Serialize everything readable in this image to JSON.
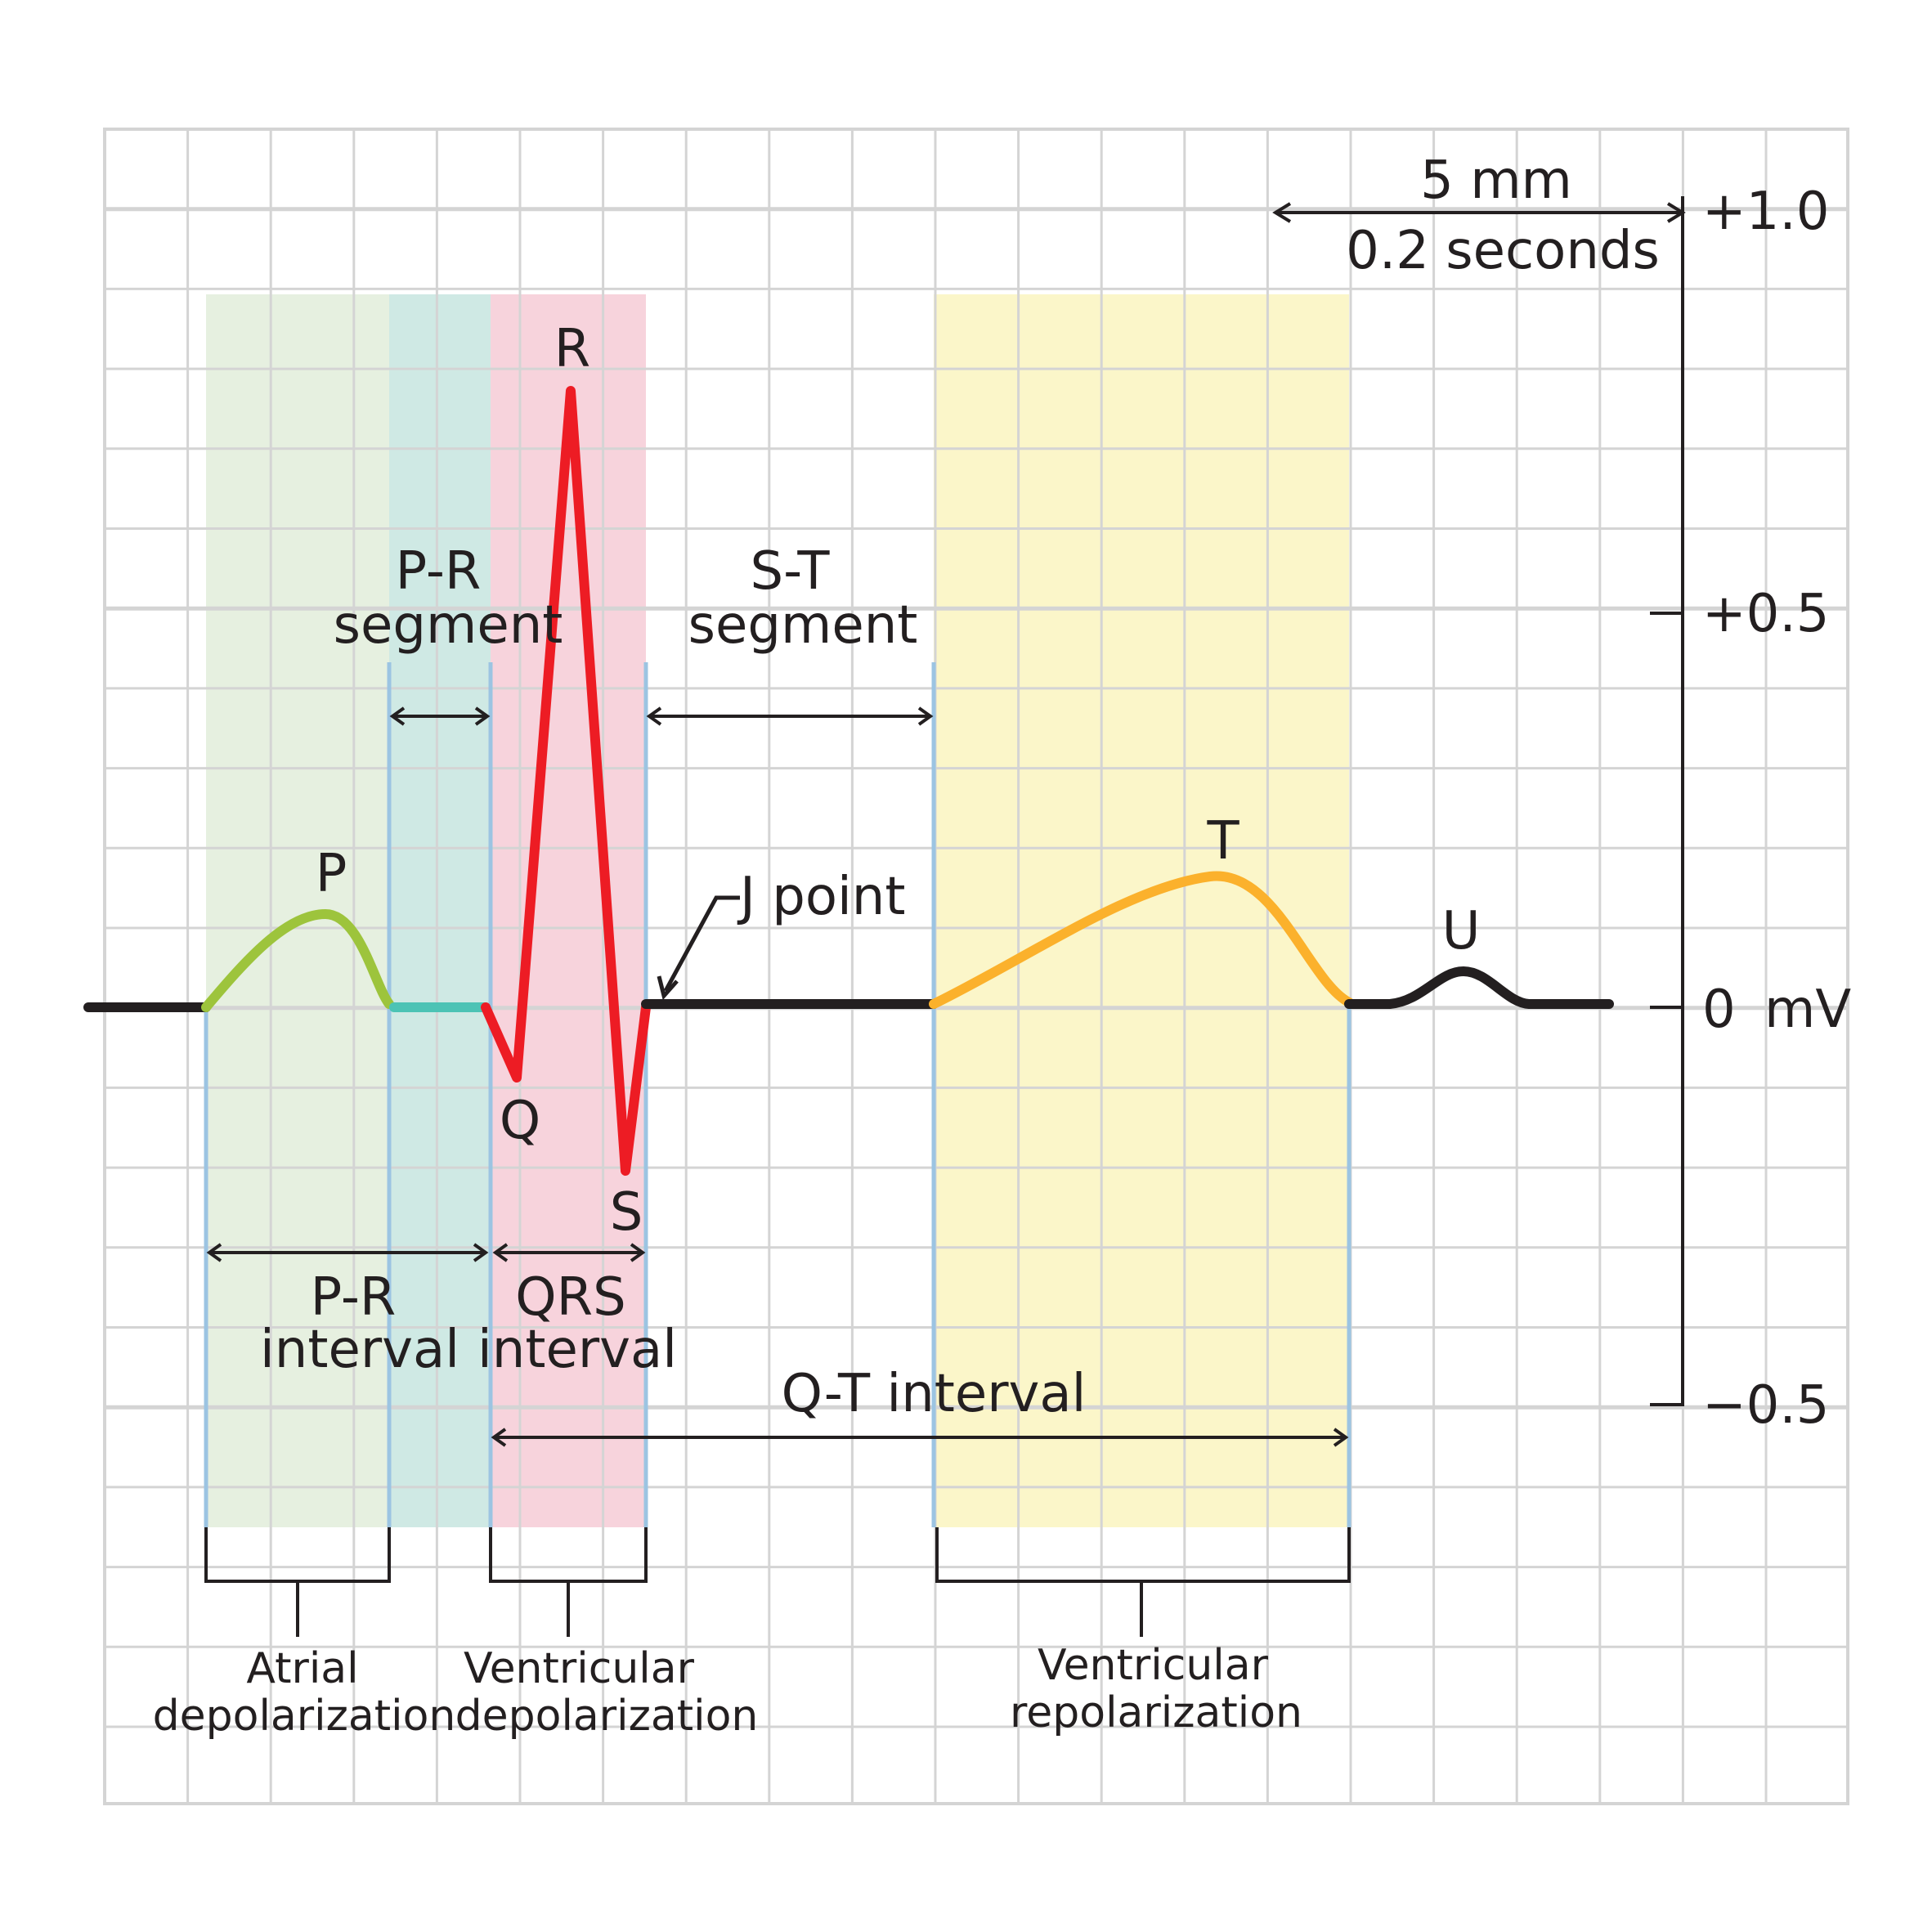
{
  "waves": {
    "p": "P",
    "q": "Q",
    "r": "R",
    "s": "S",
    "t": "T",
    "u": "U"
  },
  "segments": {
    "pr_segment_line1": "P-R",
    "pr_segment_line2": "segment",
    "st_segment_line1": "S-T",
    "st_segment_line2": "segment"
  },
  "intervals": {
    "pr_interval_line1": "P-R",
    "pr_interval_line2": "interval",
    "qrs_interval_line1": "QRS",
    "qrs_interval_line2": "interval",
    "qt_interval": "Q-T interval"
  },
  "j_point": "J point",
  "scale": {
    "distance": "5 mm",
    "time": "0.2 seconds"
  },
  "voltage_axis": {
    "plus_one": "+1.0",
    "plus_half": "+0.5",
    "zero": "0",
    "unit": "mV",
    "minus_half": "−0.5"
  },
  "phases": {
    "atrial_line1": "Atrial",
    "atrial_line2": "depolarization",
    "vent_depol_line1": "Ventricular",
    "vent_depol_line2": "depolarization",
    "vent_repol_line1": "Ventricular",
    "vent_repol_line2": "repolarization"
  },
  "colors": {
    "grid": "#d4d4d4",
    "atrial_zone": "#e6f0e0",
    "pr_zone": "#cfe9e4",
    "qrs_zone": "#f7d3dc",
    "t_zone": "#fbf6c9",
    "boundary": "#9cc4e2",
    "p_wave": "#9dc43c",
    "pr_segment": "#4cc3b5",
    "qrs": "#ed1c24",
    "t_wave": "#fbb12c",
    "baseline": "#231f20"
  }
}
